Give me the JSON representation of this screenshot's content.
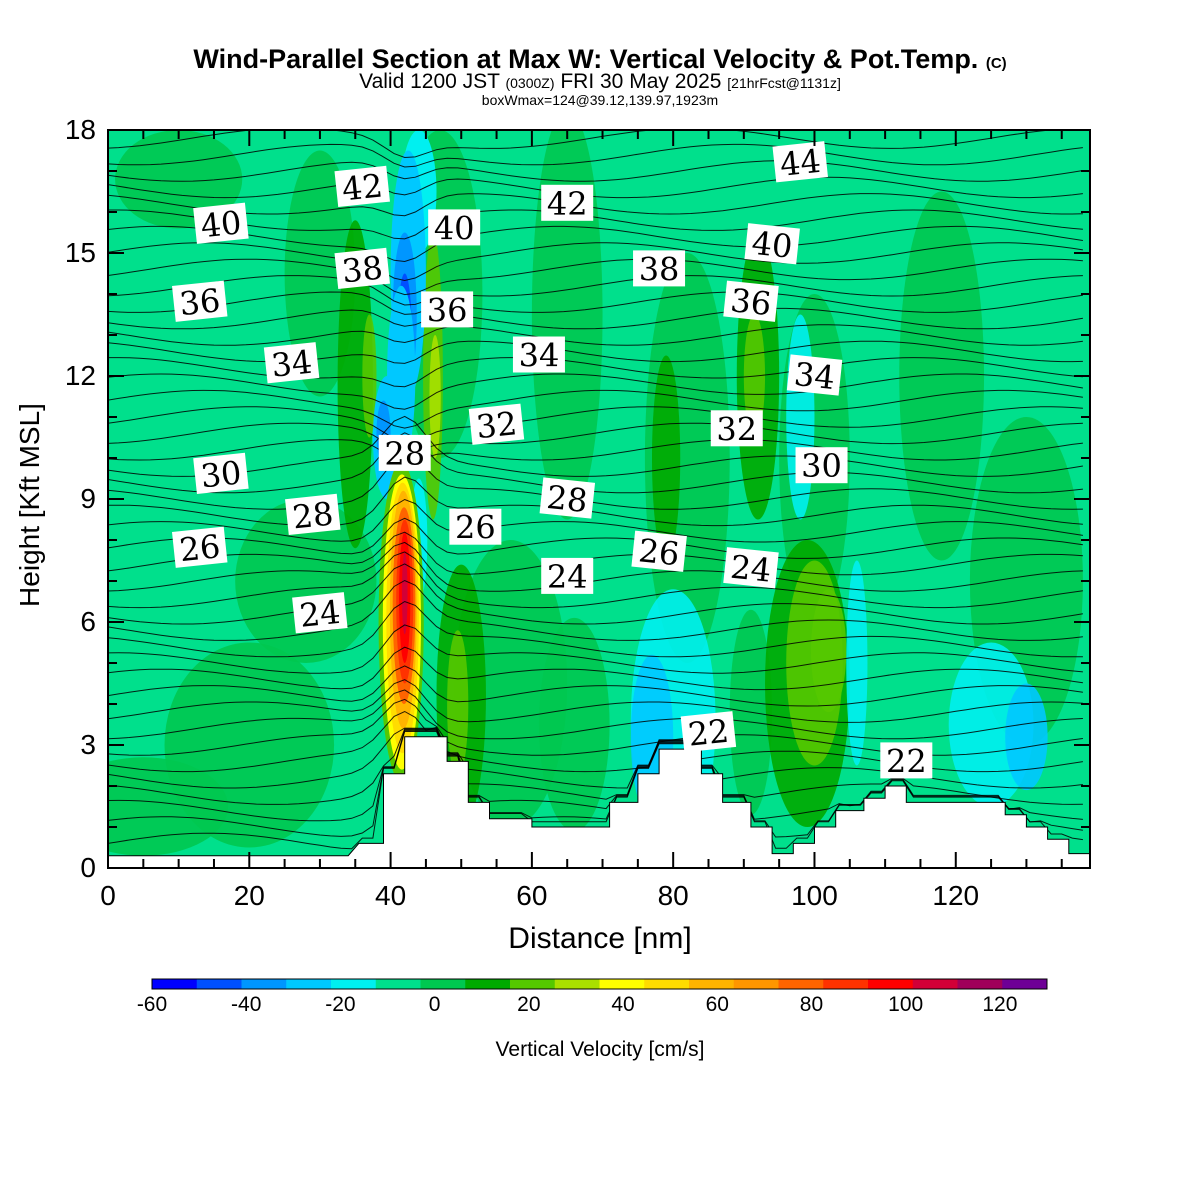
{
  "title": {
    "main": "Wind-Parallel Section at Max W: Vertical Velocity & Pot.Temp.",
    "copyright": "(C)",
    "valid_prefix": "Valid 1200 JST",
    "valid_utc": "(0300Z)",
    "valid_date": "FRI 30 May 2025",
    "forecast": "[21hrFcst@1131z]",
    "box": "boxWmax=124@39.12,139.97,1923m"
  },
  "chart_data": {
    "type": "heatmap",
    "xlabel": "Distance [nm]",
    "ylabel": "Height [Kft MSL]",
    "xlim": [
      0,
      139
    ],
    "ylim": [
      0,
      18
    ],
    "xticks": [
      "0",
      "20",
      "40",
      "60",
      "80",
      "100",
      "120"
    ],
    "yticks": [
      "0",
      "3",
      "6",
      "9",
      "12",
      "15",
      "18"
    ],
    "colorbar": {
      "label": "Vertical Velocity [cm/s]",
      "ticks": [
        "-60",
        "-40",
        "-20",
        "0",
        "20",
        "40",
        "60",
        "80",
        "100",
        "120"
      ],
      "levels": [
        -60,
        -50,
        -40,
        -30,
        -20,
        -10,
        0,
        10,
        20,
        30,
        40,
        50,
        60,
        70,
        80,
        90,
        100,
        110,
        120,
        130
      ],
      "colors": [
        "#0000ff",
        "#0050ff",
        "#0096ff",
        "#00c8ff",
        "#00f0f0",
        "#00e08c",
        "#00c850",
        "#00aa00",
        "#55c800",
        "#aae000",
        "#ffff00",
        "#ffdc00",
        "#ffb400",
        "#ff9600",
        "#ff6400",
        "#ff3200",
        "#ff0000",
        "#d20037",
        "#a0005a",
        "#6e0096"
      ]
    },
    "updraft_core": {
      "x": 42,
      "height_range": [
        2.5,
        9.5
      ],
      "peak_cm_s": 124
    },
    "downdraft_band": {
      "x_range": [
        38,
        46
      ],
      "height_range": [
        9,
        17.5
      ],
      "min_cm_s": -55
    },
    "terrain_kft": [
      [
        0,
        0.3
      ],
      [
        34,
        0.3
      ],
      [
        35.5,
        0.6
      ],
      [
        39,
        0.6
      ],
      [
        39,
        2.3
      ],
      [
        42,
        2.3
      ],
      [
        42,
        3.2
      ],
      [
        48,
        3.2
      ],
      [
        48,
        2.6
      ],
      [
        51,
        2.6
      ],
      [
        51,
        1.6
      ],
      [
        54,
        1.6
      ],
      [
        54,
        1.2
      ],
      [
        60,
        1.2
      ],
      [
        60,
        1.0
      ],
      [
        71,
        1.0
      ],
      [
        71,
        1.6
      ],
      [
        75,
        1.6
      ],
      [
        75,
        2.3
      ],
      [
        78,
        2.3
      ],
      [
        78,
        2.9
      ],
      [
        84,
        2.9
      ],
      [
        84,
        2.3
      ],
      [
        87,
        2.3
      ],
      [
        87,
        1.6
      ],
      [
        91,
        1.6
      ],
      [
        91,
        1.0
      ],
      [
        94,
        1.0
      ],
      [
        94,
        0.35
      ],
      [
        97,
        0.35
      ],
      [
        97,
        0.6
      ],
      [
        100,
        0.6
      ],
      [
        100,
        1.0
      ],
      [
        103,
        1.0
      ],
      [
        103,
        1.4
      ],
      [
        107,
        1.4
      ],
      [
        107,
        1.7
      ],
      [
        110,
        1.7
      ],
      [
        110,
        2.0
      ],
      [
        113,
        2.0
      ],
      [
        113,
        1.6
      ],
      [
        127,
        1.6
      ],
      [
        127,
        1.3
      ],
      [
        130,
        1.3
      ],
      [
        130,
        1.0
      ],
      [
        133,
        1.0
      ],
      [
        133,
        0.7
      ],
      [
        136,
        0.7
      ],
      [
        136,
        0.35
      ],
      [
        139,
        0.35
      ]
    ],
    "isentropes": [
      {
        "theta": 22,
        "labels": [
          [
            85,
            3.3
          ],
          [
            113,
            2.6
          ]
        ]
      },
      {
        "theta": 24,
        "labels": [
          [
            30,
            6.2
          ],
          [
            65,
            7.1
          ],
          [
            91,
            7.3
          ]
        ]
      },
      {
        "theta": 26,
        "labels": [
          [
            13,
            7.8
          ],
          [
            52,
            8.3
          ],
          [
            78,
            7.7
          ]
        ]
      },
      {
        "theta": 28,
        "labels": [
          [
            29,
            8.6
          ],
          [
            42,
            10.1
          ],
          [
            65,
            9.0
          ]
        ]
      },
      {
        "theta": 30,
        "labels": [
          [
            16,
            9.6
          ],
          [
            101,
            9.8
          ]
        ]
      },
      {
        "theta": 32,
        "labels": [
          [
            55,
            10.8
          ],
          [
            89,
            10.7
          ]
        ]
      },
      {
        "theta": 34,
        "labels": [
          [
            26,
            12.3
          ],
          [
            61,
            12.5
          ],
          [
            100,
            12.0
          ]
        ]
      },
      {
        "theta": 36,
        "labels": [
          [
            13,
            13.8
          ],
          [
            48,
            13.6
          ],
          [
            91,
            13.8
          ]
        ]
      },
      {
        "theta": 38,
        "labels": [
          [
            36,
            14.6
          ],
          [
            78,
            14.6
          ]
        ]
      },
      {
        "theta": 40,
        "labels": [
          [
            16,
            15.7
          ],
          [
            49,
            15.6
          ],
          [
            94,
            15.2
          ]
        ]
      },
      {
        "theta": 42,
        "labels": [
          [
            36,
            16.6
          ],
          [
            65,
            16.2
          ]
        ]
      },
      {
        "theta": 44,
        "labels": [
          [
            98,
            17.2
          ]
        ]
      }
    ]
  }
}
